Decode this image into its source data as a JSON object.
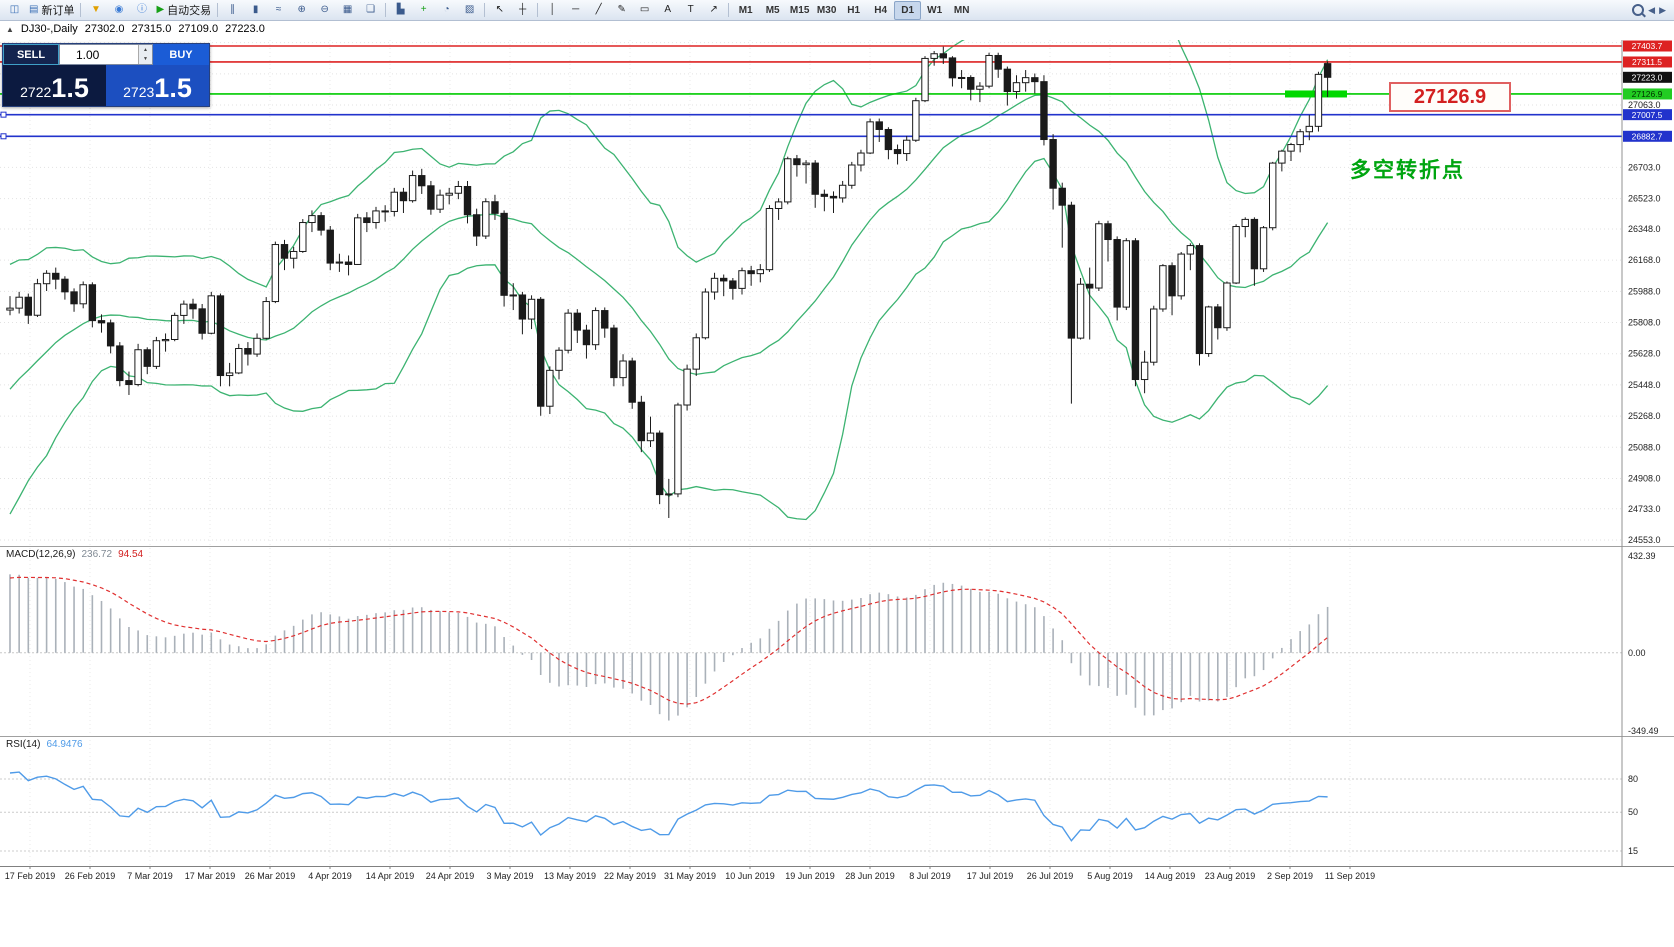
{
  "toolbar": {
    "new_order_label": "新订单",
    "auto_trading_label": "自动交易",
    "groups": [
      {
        "items": [
          {
            "name": "new-chart-icon",
            "glyph": "◫",
            "color": "#3a6fb5"
          },
          {
            "name": "new-order-button",
            "glyph": "▤",
            "color": "#3a6fb5",
            "label": "新订单"
          }
        ]
      },
      {
        "items": [
          {
            "name": "market-icon",
            "glyph": "▼",
            "color": "#e0a000"
          },
          {
            "name": "community-icon",
            "glyph": "◉",
            "color": "#3a7bd5"
          },
          {
            "name": "info-icon",
            "glyph": "ⓘ",
            "color": "#3a7bd5"
          },
          {
            "name": "auto-trading-button",
            "glyph": "▶",
            "color": "#17a017",
            "label": "自动交易"
          }
        ]
      },
      {
        "items": [
          {
            "name": "bar-chart-icon",
            "glyph": "∥",
            "color": "#3a5a8c"
          },
          {
            "name": "candlestick-chart-icon",
            "glyph": "▮",
            "color": "#3a5a8c"
          },
          {
            "name": "line-chart-icon",
            "glyph": "≈",
            "color": "#3a5a8c"
          },
          {
            "name": "zoom-in-icon",
            "glyph": "⊕",
            "color": "#3a5a8c"
          },
          {
            "name": "zoom-out-icon",
            "glyph": "⊖",
            "color": "#3a5a8c"
          },
          {
            "name": "grid-icon",
            "glyph": "▦",
            "color": "#3a5a8c"
          },
          {
            "name": "tile-windows-icon",
            "glyph": "❏",
            "color": "#3a5a8c"
          }
        ]
      },
      {
        "items": [
          {
            "name": "arrange-icon",
            "glyph": "▙",
            "color": "#3a5a8c"
          },
          {
            "name": "indicators-icon",
            "glyph": "+",
            "color": "#17a017"
          },
          {
            "name": "periods-icon",
            "glyph": "◔",
            "color": "#3a5a8c"
          },
          {
            "name": "templates-icon",
            "glyph": "▨",
            "color": "#3a5a8c"
          }
        ]
      },
      {
        "items": [
          {
            "name": "cursor-icon",
            "glyph": "↖",
            "color": "#222222"
          },
          {
            "name": "crosshair-icon",
            "glyph": "┼",
            "color": "#222222"
          }
        ]
      },
      {
        "items": [
          {
            "name": "vertical-line-icon",
            "glyph": "│",
            "color": "#222222"
          },
          {
            "name": "horizontal-line-icon",
            "glyph": "─",
            "color": "#222222"
          },
          {
            "name": "trendline-icon",
            "glyph": "╱",
            "color": "#222222"
          },
          {
            "name": "draw-icon",
            "glyph": "✎",
            "color": "#222222"
          },
          {
            "name": "shapes-icon",
            "glyph": "▭",
            "color": "#222222"
          },
          {
            "name": "text-icon",
            "glyph": "A",
            "color": "#222222"
          },
          {
            "name": "label-icon",
            "glyph": "T",
            "color": "#222222"
          },
          {
            "name": "arrows-icon",
            "glyph": "↗",
            "color": "#222222"
          }
        ]
      }
    ],
    "timeframes": [
      {
        "name": "tf-m1",
        "label": "M1"
      },
      {
        "name": "tf-m5",
        "label": "M5"
      },
      {
        "name": "tf-m15",
        "label": "M15"
      },
      {
        "name": "tf-m30",
        "label": "M30"
      },
      {
        "name": "tf-h1",
        "label": "H1"
      },
      {
        "name": "tf-h4",
        "label": "H4"
      },
      {
        "name": "tf-d1",
        "label": "D1",
        "active": true
      },
      {
        "name": "tf-w1",
        "label": "W1"
      },
      {
        "name": "tf-mn",
        "label": "MN"
      }
    ]
  },
  "chart": {
    "title": "DJ30-,Daily",
    "open": "27302.0",
    "high": "27315.0",
    "low": "27109.0",
    "close": "27223.0"
  },
  "trade_panel": {
    "sell_label": "SELL",
    "buy_label": "BUY",
    "volume": "1.00",
    "sell_price": {
      "full": "27221.5",
      "small": "2722",
      "big": "1.5"
    },
    "buy_price": {
      "full": "27231.5",
      "small": "2723",
      "big": "1.5"
    }
  },
  "annotations": {
    "big_price_label": "27126.9",
    "turning_point_label": "多空转折点"
  },
  "indicators": {
    "macd": {
      "name": "MACD(12,26,9)",
      "main_value": "236.72",
      "signal_value": "94.54",
      "axis_labels": [
        "432.39",
        "0.00",
        "-349.49"
      ]
    },
    "rsi": {
      "name": "RSI(14)",
      "value": "64.9476",
      "axis_labels": [
        "80",
        "50",
        "15"
      ]
    }
  },
  "chart_data": {
    "type": "candlestick",
    "symbol": "DJ30-",
    "period": "Daily",
    "ohlc_display": [
      27302.0,
      27315.0,
      27109.0,
      27223.0
    ],
    "price_axis_ticks": [
      "27063.0",
      "26703.0",
      "26523.0",
      "26348.0",
      "26168.0",
      "25988.0",
      "25808.0",
      "25628.0",
      "25448.0",
      "25268.0",
      "25088.0",
      "24908.0",
      "24733.0",
      "24553.0"
    ],
    "date_ticks": [
      "17 Feb 2019",
      "26 Feb 2019",
      "7 Mar 2019",
      "17 Mar 2019",
      "26 Mar 2019",
      "4 Apr 2019",
      "14 Apr 2019",
      "24 Apr 2019",
      "3 May 2019",
      "13 May 2019",
      "22 May 2019",
      "31 May 2019",
      "10 Jun 2019",
      "19 Jun 2019",
      "28 Jun 2019",
      "8 Jul 2019",
      "17 Jul 2019",
      "26 Jul 2019",
      "5 Aug 2019",
      "14 Aug 2019",
      "23 Aug 2019",
      "2 Sep 2019",
      "11 Sep 2019"
    ],
    "hlines": [
      {
        "price": 27403.7,
        "color": "#dd2222",
        "handles": false,
        "highlight": false
      },
      {
        "price": 27311.5,
        "color": "#dd2222",
        "handles": false,
        "highlight": false
      },
      {
        "price": 27126.9,
        "color": "#00cc00",
        "handles": false,
        "highlight": true
      },
      {
        "price": 27007.5,
        "color": "#2233cc",
        "handles": true,
        "highlight": false
      },
      {
        "price": 26882.7,
        "color": "#2233cc",
        "handles": true,
        "highlight": false
      }
    ],
    "price_tags": [
      {
        "label": "27403.7",
        "price": 27403.7,
        "bg": "#dd2222",
        "fg": "#ffffff"
      },
      {
        "label": "27311.5",
        "price": 27311.5,
        "bg": "#dd2222",
        "fg": "#ffffff"
      },
      {
        "label": "27223.0",
        "price": 27223.0,
        "bg": "#111111",
        "fg": "#ffffff"
      },
      {
        "label": "27126.9",
        "price": 27126.9,
        "bg": "#22cc22",
        "fg": "#003300"
      },
      {
        "label": "27007.5",
        "price": 27007.5,
        "bg": "#2233cc",
        "fg": "#ffffff"
      },
      {
        "label": "26882.7",
        "price": 26882.7,
        "bg": "#2233cc",
        "fg": "#ffffff"
      }
    ],
    "overlays": {
      "bollinger": {
        "period": 20,
        "deviations": 2,
        "color": "#3cb371"
      },
      "macd": {
        "fast": 12,
        "slow": 26,
        "signal": 9
      },
      "rsi": {
        "period": 14
      }
    },
    "warmup_closes": [
      24200,
      24350,
      24450,
      24400,
      24550,
      24650,
      24600,
      24750,
      24850,
      24950,
      25050,
      25000,
      25150,
      25250,
      25350,
      25300,
      25450,
      25550,
      25500,
      25650,
      25700,
      25780,
      25740,
      25820,
      25880,
      25850
    ],
    "candles": [
      [
        25880,
        25960,
        25850,
        25891
      ],
      [
        25891,
        25985,
        25860,
        25954
      ],
      [
        25954,
        25975,
        25800,
        25850
      ],
      [
        25850,
        26060,
        25840,
        26032
      ],
      [
        26032,
        26110,
        25990,
        26092
      ],
      [
        26092,
        26125,
        26000,
        26058
      ],
      [
        26058,
        26075,
        25940,
        25985
      ],
      [
        25985,
        26005,
        25870,
        25916
      ],
      [
        25916,
        26045,
        25890,
        26026
      ],
      [
        26026,
        26040,
        25780,
        25819
      ],
      [
        25819,
        25855,
        25750,
        25806
      ],
      [
        25806,
        25825,
        25630,
        25673
      ],
      [
        25673,
        25695,
        25440,
        25473
      ],
      [
        25473,
        25525,
        25390,
        25450
      ],
      [
        25450,
        25685,
        25440,
        25651
      ],
      [
        25651,
        25665,
        25510,
        25555
      ],
      [
        25555,
        25725,
        25540,
        25703
      ],
      [
        25703,
        25745,
        25640,
        25710
      ],
      [
        25710,
        25865,
        25700,
        25849
      ],
      [
        25849,
        25935,
        25800,
        25914
      ],
      [
        25914,
        25945,
        25830,
        25887
      ],
      [
        25887,
        25915,
        25710,
        25746
      ],
      [
        25746,
        25985,
        25740,
        25962
      ],
      [
        25962,
        25975,
        25440,
        25502
      ],
      [
        25502,
        25575,
        25440,
        25517
      ],
      [
        25517,
        25685,
        25510,
        25658
      ],
      [
        25658,
        25695,
        25560,
        25626
      ],
      [
        25626,
        25745,
        25610,
        25717
      ],
      [
        25717,
        25955,
        25710,
        25929
      ],
      [
        25929,
        26275,
        25920,
        26258
      ],
      [
        26258,
        26285,
        26110,
        26179
      ],
      [
        26179,
        26245,
        26120,
        26218
      ],
      [
        26218,
        26405,
        26210,
        26385
      ],
      [
        26385,
        26455,
        26330,
        26425
      ],
      [
        26425,
        26445,
        26310,
        26341
      ],
      [
        26341,
        26365,
        26110,
        26151
      ],
      [
        26151,
        26205,
        26100,
        26157
      ],
      [
        26157,
        26195,
        26080,
        26143
      ],
      [
        26143,
        26435,
        26140,
        26412
      ],
      [
        26412,
        26445,
        26330,
        26385
      ],
      [
        26385,
        26475,
        26350,
        26452
      ],
      [
        26452,
        26485,
        26390,
        26449
      ],
      [
        26449,
        26585,
        26420,
        26560
      ],
      [
        26560,
        26585,
        26440,
        26511
      ],
      [
        26511,
        26685,
        26500,
        26656
      ],
      [
        26656,
        26695,
        26550,
        26597
      ],
      [
        26597,
        26625,
        26430,
        26462
      ],
      [
        26462,
        26575,
        26440,
        26543
      ],
      [
        26543,
        26585,
        26490,
        26554
      ],
      [
        26554,
        26625,
        26520,
        26593
      ],
      [
        26593,
        26625,
        26380,
        26430
      ],
      [
        26430,
        26465,
        26250,
        26307
      ],
      [
        26307,
        26525,
        26290,
        26505
      ],
      [
        26505,
        26545,
        26400,
        26438
      ],
      [
        26438,
        26455,
        25900,
        25965
      ],
      [
        25965,
        26035,
        25880,
        25967
      ],
      [
        25967,
        25985,
        25740,
        25828
      ],
      [
        25828,
        25965,
        25770,
        25942
      ],
      [
        25942,
        25955,
        25270,
        25325
      ],
      [
        25325,
        25555,
        25280,
        25532
      ],
      [
        25532,
        25665,
        25480,
        25648
      ],
      [
        25648,
        25885,
        25630,
        25862
      ],
      [
        25862,
        25885,
        25690,
        25764
      ],
      [
        25764,
        25795,
        25600,
        25680
      ],
      [
        25680,
        25895,
        25650,
        25877
      ],
      [
        25877,
        25895,
        25720,
        25776
      ],
      [
        25776,
        25795,
        25440,
        25490
      ],
      [
        25490,
        25625,
        25440,
        25586
      ],
      [
        25586,
        25605,
        25310,
        25348
      ],
      [
        25348,
        25385,
        25060,
        25126
      ],
      [
        25126,
        25265,
        25090,
        25170
      ],
      [
        25170,
        25185,
        24760,
        24815
      ],
      [
        24815,
        24905,
        24680,
        24819
      ],
      [
        24819,
        25345,
        24800,
        25332
      ],
      [
        25332,
        25565,
        25300,
        25539
      ],
      [
        25539,
        25745,
        25500,
        25720
      ],
      [
        25720,
        26005,
        25710,
        25984
      ],
      [
        25984,
        26095,
        25940,
        26063
      ],
      [
        26063,
        26085,
        25960,
        26048
      ],
      [
        26048,
        26065,
        25940,
        26005
      ],
      [
        26005,
        26125,
        25970,
        26107
      ],
      [
        26107,
        26135,
        26020,
        26090
      ],
      [
        26090,
        26145,
        26040,
        26113
      ],
      [
        26113,
        26485,
        26100,
        26466
      ],
      [
        26466,
        26525,
        26400,
        26504
      ],
      [
        26504,
        26765,
        26490,
        26753
      ],
      [
        26753,
        26775,
        26650,
        26719
      ],
      [
        26719,
        26745,
        26610,
        26728
      ],
      [
        26728,
        26745,
        26470,
        26548
      ],
      [
        26548,
        26575,
        26450,
        26536
      ],
      [
        26536,
        26565,
        26440,
        26527
      ],
      [
        26527,
        26625,
        26500,
        26600
      ],
      [
        26600,
        26735,
        26580,
        26717
      ],
      [
        26717,
        26805,
        26680,
        26786
      ],
      [
        26786,
        26985,
        26780,
        26966
      ],
      [
        26966,
        26985,
        26850,
        26922
      ],
      [
        26922,
        26935,
        26750,
        26806
      ],
      [
        26806,
        26835,
        26720,
        26783
      ],
      [
        26783,
        26885,
        26740,
        26860
      ],
      [
        26860,
        27105,
        26850,
        27088
      ],
      [
        27088,
        27345,
        27080,
        27332
      ],
      [
        27332,
        27375,
        27290,
        27359
      ],
      [
        27359,
        27400,
        27300,
        27335
      ],
      [
        27335,
        27345,
        27170,
        27220
      ],
      [
        27220,
        27265,
        27160,
        27222
      ],
      [
        27222,
        27235,
        27090,
        27154
      ],
      [
        27154,
        27195,
        27080,
        27172
      ],
      [
        27172,
        27365,
        27160,
        27349
      ],
      [
        27349,
        27365,
        27220,
        27270
      ],
      [
        27270,
        27285,
        27060,
        27141
      ],
      [
        27141,
        27235,
        27100,
        27192
      ],
      [
        27192,
        27265,
        27140,
        27221
      ],
      [
        27221,
        27245,
        27130,
        27198
      ],
      [
        27198,
        27235,
        26830,
        26864
      ],
      [
        26864,
        26895,
        26460,
        26583
      ],
      [
        26583,
        26615,
        26240,
        26485
      ],
      [
        26485,
        26505,
        25340,
        25718
      ],
      [
        25718,
        26065,
        25710,
        26029
      ],
      [
        26029,
        26125,
        25710,
        26007
      ],
      [
        26007,
        26395,
        25990,
        26378
      ],
      [
        26378,
        26395,
        26160,
        26287
      ],
      [
        26287,
        26305,
        25820,
        25897
      ],
      [
        25897,
        26295,
        25880,
        26280
      ],
      [
        26280,
        26295,
        25440,
        25479
      ],
      [
        25479,
        25645,
        25400,
        25579
      ],
      [
        25579,
        25905,
        25560,
        25886
      ],
      [
        25886,
        26145,
        25870,
        26136
      ],
      [
        26136,
        26155,
        25850,
        25962
      ],
      [
        25962,
        26215,
        25940,
        26203
      ],
      [
        26203,
        26265,
        26110,
        26252
      ],
      [
        26252,
        26265,
        25560,
        25629
      ],
      [
        25629,
        25905,
        25610,
        25898
      ],
      [
        25898,
        25915,
        25710,
        25778
      ],
      [
        25778,
        26045,
        25760,
        26036
      ],
      [
        26036,
        26375,
        26030,
        26362
      ],
      [
        26362,
        26415,
        26300,
        26403
      ],
      [
        26403,
        26415,
        26020,
        26118
      ],
      [
        26118,
        26365,
        26100,
        26355
      ],
      [
        26355,
        26735,
        26340,
        26728
      ],
      [
        26728,
        26805,
        26680,
        26797
      ],
      [
        26797,
        26845,
        26740,
        26835
      ],
      [
        26835,
        26925,
        26790,
        26909
      ],
      [
        26909,
        27005,
        26860,
        26940
      ],
      [
        26940,
        27255,
        26910,
        27240
      ],
      [
        27302,
        27315,
        27109,
        27223
      ]
    ]
  }
}
